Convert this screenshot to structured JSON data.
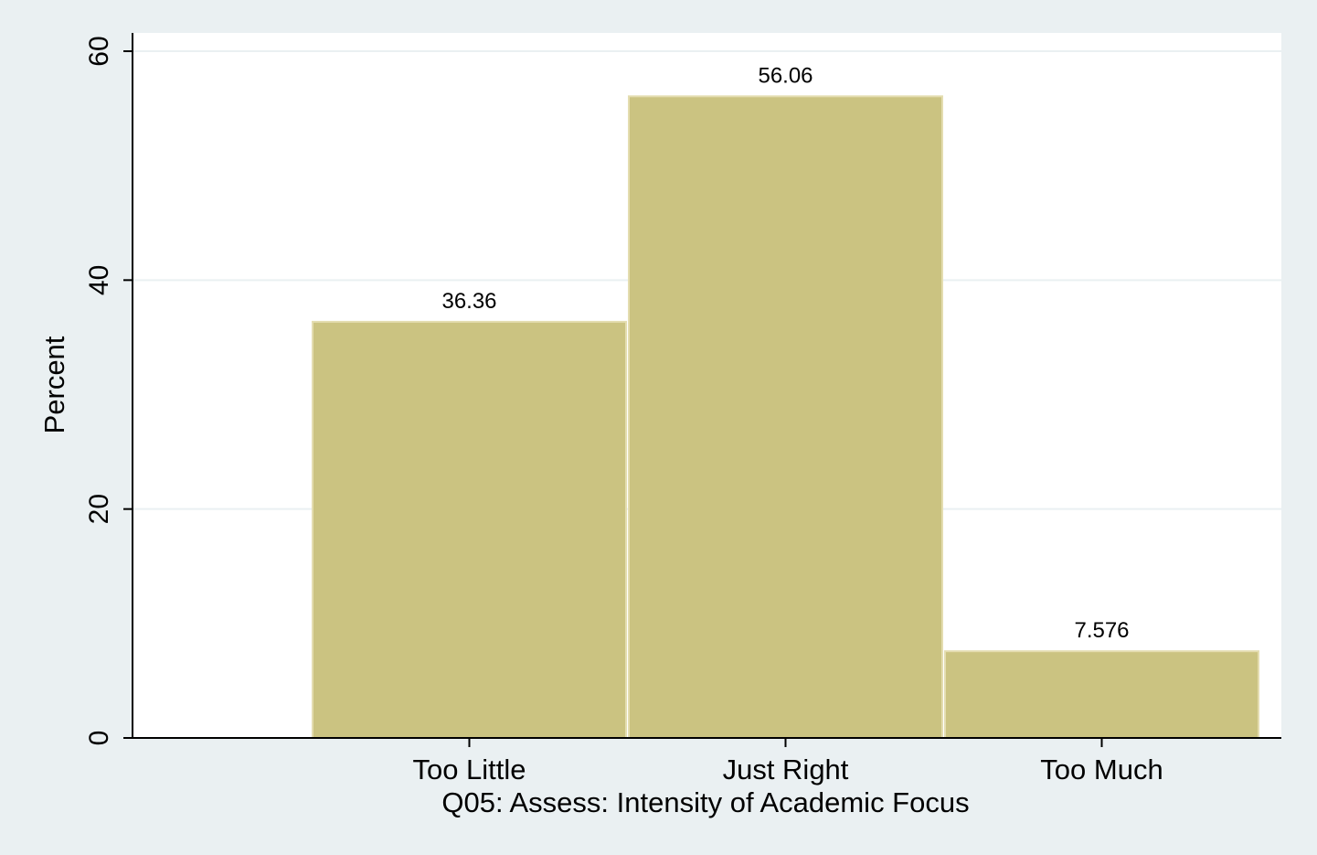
{
  "chart_data": {
    "type": "bar",
    "title": "",
    "xlabel": "Q05: Assess: Intensity of Academic Focus",
    "ylabel": "Percent",
    "categories": [
      "Too Little",
      "Just Right",
      "Too Much"
    ],
    "values": [
      36.36,
      56.06,
      7.576
    ],
    "value_labels": [
      "36.36",
      "56.06",
      "7.576"
    ],
    "ylim": [
      0,
      60
    ],
    "yticks": [
      0,
      20,
      40,
      60
    ],
    "ytick_labels": [
      "0",
      "20",
      "40",
      "60"
    ],
    "grid": true,
    "legend": "none",
    "colors": {
      "outer_background": "#eaf0f2",
      "plot_background": "#ffffff",
      "bar_fill": "#cbc381",
      "bar_edge": "#e4ddb0",
      "grid": "#eaf0f2",
      "axis": "#000000"
    }
  }
}
